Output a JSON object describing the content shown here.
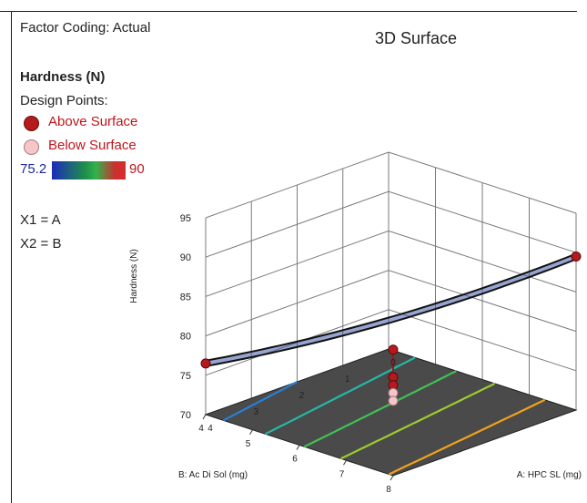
{
  "legend": {
    "factor_coding": "Factor Coding: Actual",
    "response_name": "Hardness (N)",
    "design_points_label": "Design Points:",
    "above_label": "Above Surface",
    "below_label": "Below Surface",
    "color_min": "75.2",
    "color_max": "90",
    "x1_eq": "X1 = A",
    "x2_eq": "X2 = B"
  },
  "colors": {
    "above_point": "#b51a1c",
    "below_point": "#f7c6c9",
    "floor": "#4a4a4a"
  },
  "chart_data": {
    "type": "surface3d",
    "title": "3D Surface",
    "zlabel": "Hardness (N)",
    "xlabel": "A: HPC SL (mg)",
    "ylabel": "B: Ac Di Sol (mg)",
    "zlim": [
      70,
      95
    ],
    "xlim": [
      4,
      8
    ],
    "ylim": [
      0,
      4
    ],
    "z_ticks": [
      "70",
      "75",
      "80",
      "85",
      "90",
      "95"
    ],
    "x_ticks": [
      "4",
      "5",
      "6",
      "7",
      "8"
    ],
    "y_ticks": [
      "0",
      "1",
      "2",
      "3",
      "4"
    ],
    "grid": true,
    "contour_levels": [
      {
        "level": 77,
        "color": "#2a7fd4"
      },
      {
        "level": 79.5,
        "color": "#25b8a6"
      },
      {
        "level": 82,
        "color": "#3ec256"
      },
      {
        "level": 84.5,
        "color": "#9ccc2e"
      },
      {
        "level": 88,
        "color": "#f0a21c"
      }
    ],
    "design_points": [
      {
        "a": 4,
        "b": 4,
        "hardness": 76.5,
        "position": "above"
      },
      {
        "a": 8,
        "b": 0,
        "hardness": 89.5,
        "position": "above"
      },
      {
        "a": 8,
        "b": 4,
        "hardness": 86,
        "position": "above"
      },
      {
        "a": 8,
        "b": 4,
        "hardness": 82.5,
        "position": "above"
      },
      {
        "a": 8,
        "b": 4,
        "hardness": 81.5,
        "position": "above"
      },
      {
        "a": 8,
        "b": 4,
        "hardness": 80.5,
        "position": "below"
      },
      {
        "a": 8,
        "b": 4,
        "hardness": 79.5,
        "position": "below"
      }
    ]
  }
}
